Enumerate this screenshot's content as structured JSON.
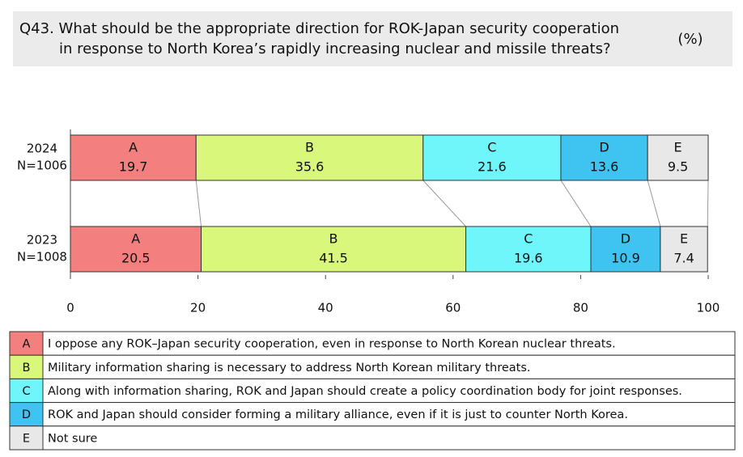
{
  "chart_data": {
    "type": "stacked-bar-horizontal",
    "title_lines": [
      "Q43. What should be the appropriate direction for ROK-Japan security cooperation",
      "in response to North Korea’s rapidly increasing nuclear and missile threats?"
    ],
    "unit_label": "(%)",
    "categories": [
      "2024",
      "2023"
    ],
    "category_notes": [
      "N=1006",
      "N=1008"
    ],
    "series": [
      {
        "name": "A",
        "description": "I oppose any ROK–Japan security cooperation, even in response to North Korean nuclear threats.",
        "color": "#f47f7f",
        "values": [
          19.7,
          20.5
        ]
      },
      {
        "name": "B",
        "description": "Military information sharing is necessary to address North Korean military threats.",
        "color": "#d9f77b",
        "values": [
          35.6,
          41.5
        ]
      },
      {
        "name": "C",
        "description": "Along with information sharing, ROK and Japan should create a policy coordination body for joint responses.",
        "color": "#6ff6fb",
        "values": [
          21.6,
          19.6
        ]
      },
      {
        "name": "D",
        "description": "ROK and Japan should consider forming a military alliance, even if it is just to counter North Korea.",
        "color": "#3fc3f1",
        "values": [
          13.6,
          10.9
        ]
      },
      {
        "name": "E",
        "description": "Not sure",
        "color": "#e8e8e8",
        "values": [
          9.5,
          7.4
        ]
      }
    ],
    "xlim": [
      0,
      100
    ],
    "xticks": [
      0,
      20,
      40,
      60,
      80,
      100
    ]
  }
}
